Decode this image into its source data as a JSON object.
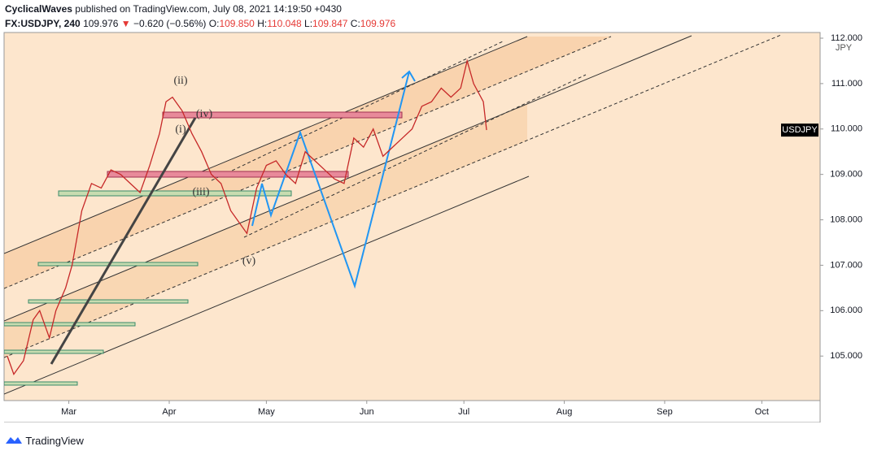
{
  "header": {
    "author": "CyclicalWaves",
    "published": "published on TradingView.com, July 08, 2021 14:19:50 +0430",
    "symbol": "FX:USDJPY, 240",
    "last": "109.976",
    "arrow": "▼",
    "change": "−0.620 (−0.56%)",
    "o_label": "O:",
    "o": "109.850",
    "h_label": "H:",
    "h": "110.048",
    "l_label": "L:",
    "l": "109.847",
    "c_label": "C:",
    "c": "109.976"
  },
  "footer": {
    "brand": "TradingView"
  },
  "chart_data": {
    "type": "line",
    "series": [
      {
        "name": "USDJPY",
        "color": "#c62828",
        "x": [
          "2021-02-10",
          "2021-02-12",
          "2021-02-15",
          "2021-02-18",
          "2021-02-20",
          "2021-02-23",
          "2021-02-25",
          "2021-02-28",
          "2021-03-02",
          "2021-03-05",
          "2021-03-08",
          "2021-03-11",
          "2021-03-14",
          "2021-03-17",
          "2021-03-20",
          "2021-03-23",
          "2021-03-26",
          "2021-03-29",
          "2021-03-31",
          "2021-04-02",
          "2021-04-05",
          "2021-04-08",
          "2021-04-11",
          "2021-04-14",
          "2021-04-17",
          "2021-04-20",
          "2021-04-23",
          "2021-04-25",
          "2021-04-28",
          "2021-05-01",
          "2021-05-04",
          "2021-05-07",
          "2021-05-10",
          "2021-05-13",
          "2021-05-16",
          "2021-05-19",
          "2021-05-22",
          "2021-05-25",
          "2021-05-28",
          "2021-05-31",
          "2021-06-03",
          "2021-06-06",
          "2021-06-09",
          "2021-06-12",
          "2021-06-15",
          "2021-06-18",
          "2021-06-21",
          "2021-06-24",
          "2021-06-27",
          "2021-06-30",
          "2021-07-02",
          "2021-07-04",
          "2021-07-07",
          "2021-07-08"
        ],
        "values": [
          105.0,
          104.6,
          104.9,
          105.8,
          106.0,
          105.4,
          106.0,
          106.5,
          107.0,
          108.2,
          108.8,
          108.7,
          109.1,
          109.0,
          108.8,
          108.6,
          109.2,
          109.9,
          110.6,
          110.7,
          110.4,
          109.9,
          109.5,
          109.0,
          108.8,
          108.2,
          107.9,
          107.7,
          108.7,
          109.2,
          109.3,
          109.0,
          108.8,
          109.5,
          109.3,
          109.1,
          108.9,
          108.8,
          109.8,
          109.6,
          110.0,
          109.4,
          109.6,
          109.8,
          110.0,
          110.5,
          110.6,
          110.9,
          110.7,
          110.9,
          111.5,
          111.0,
          110.6,
          109.976
        ]
      }
    ],
    "xlim": [
      "2021-02-09",
      "2021-10-19"
    ],
    "xticks": [
      {
        "value": "2021-03-01",
        "label": "Mar"
      },
      {
        "value": "2021-04-01",
        "label": "Apr"
      },
      {
        "value": "2021-05-01",
        "label": "May"
      },
      {
        "value": "2021-06-01",
        "label": "Jun"
      },
      {
        "value": "2021-07-01",
        "label": "Jul"
      },
      {
        "value": "2021-08-01",
        "label": "Aug"
      },
      {
        "value": "2021-09-01",
        "label": "Sep"
      },
      {
        "value": "2021-10-01",
        "label": "Oct"
      }
    ],
    "ylim": [
      104.02,
      112.125
    ],
    "yticks": [
      {
        "value": 105,
        "label": "105.000"
      },
      {
        "value": 106,
        "label": "106.000"
      },
      {
        "value": 107,
        "label": "107.000"
      },
      {
        "value": 108,
        "label": "108.000"
      },
      {
        "value": 109,
        "label": "109.000"
      },
      {
        "value": 110,
        "label": "110.000"
      },
      {
        "value": 111,
        "label": "111.000"
      },
      {
        "value": 112,
        "label": "112.000"
      }
    ],
    "currency": "JPY",
    "annotations": [
      "(ii)",
      "(i)",
      "(iv)",
      "(iii)",
      "(v)"
    ]
  }
}
